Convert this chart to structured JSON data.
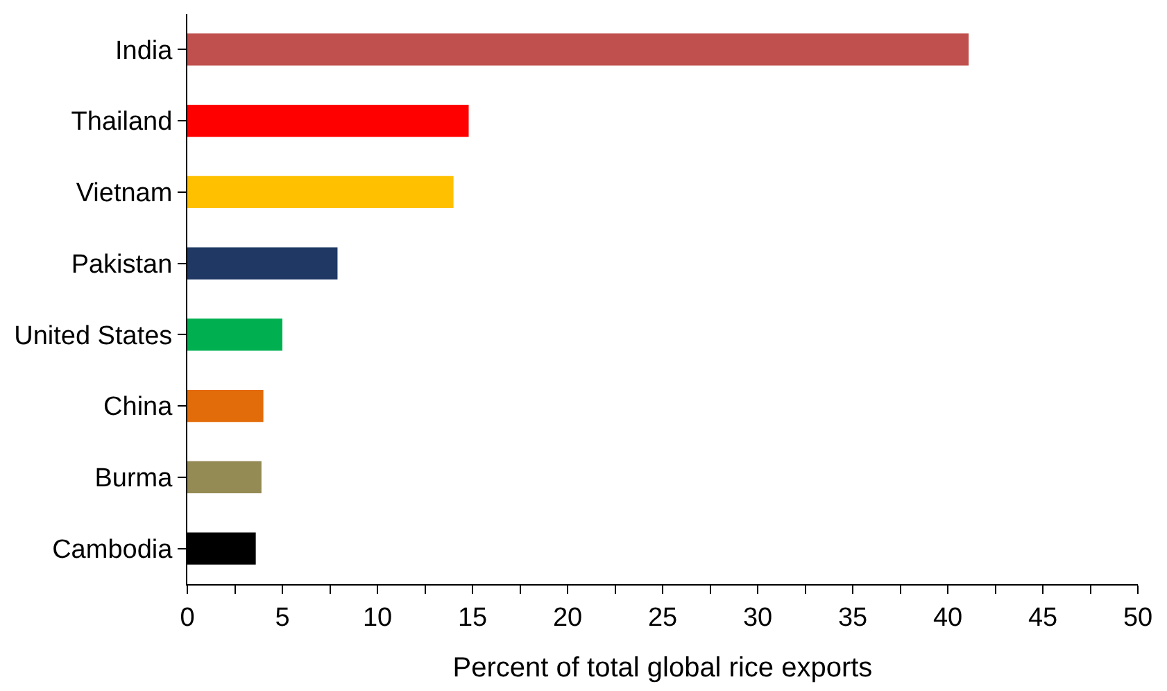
{
  "chart_data": {
    "type": "bar",
    "orientation": "horizontal",
    "xlabel": "Percent of total global rice exports",
    "categories": [
      "India",
      "Thailand",
      "Vietnam",
      "Pakistan",
      "United States",
      "China",
      "Burma",
      "Cambodia"
    ],
    "values": [
      41.1,
      14.8,
      14.0,
      7.9,
      5.0,
      4.0,
      3.9,
      3.6
    ],
    "colors": [
      "#c0504d",
      "#ff0000",
      "#ffc000",
      "#1f3864",
      "#00b050",
      "#e36c0a",
      "#948a54",
      "#000000"
    ],
    "xlim": [
      0,
      50
    ],
    "xticks": [
      0,
      {
        "value": 2.5,
        "label": null
      },
      5,
      {
        "value": 7.5,
        "label": null
      },
      10,
      {
        "value": 12.5,
        "label": null
      },
      15,
      {
        "value": 17.5,
        "label": null
      },
      20,
      {
        "value": 22.5,
        "label": null
      },
      25,
      {
        "value": 27.5,
        "label": null
      },
      30,
      {
        "value": 32.5,
        "label": null
      },
      35,
      {
        "value": 37.5,
        "label": null
      },
      40,
      {
        "value": 42.5,
        "label": null
      },
      45,
      {
        "value": 47.5,
        "label": null
      },
      50
    ],
    "legend": false
  }
}
